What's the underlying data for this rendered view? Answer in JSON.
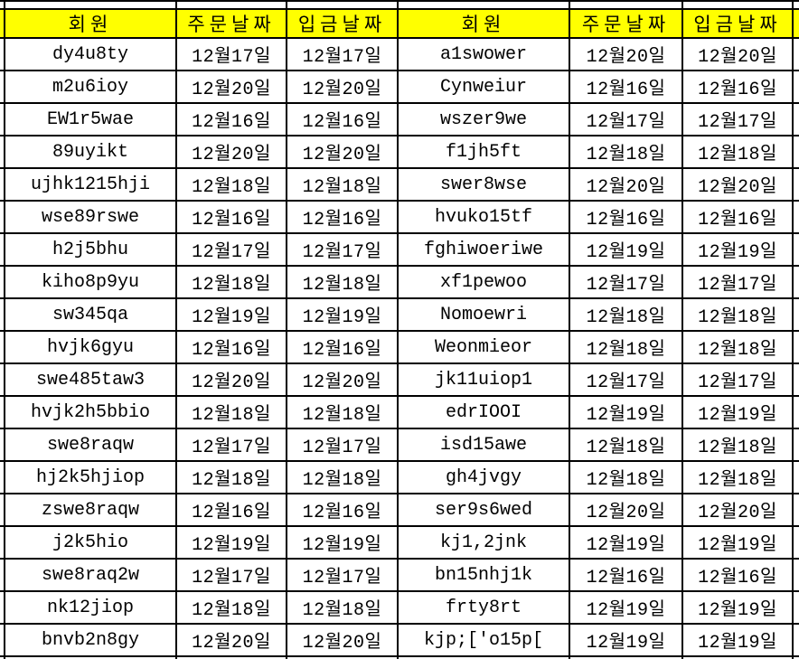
{
  "colors": {
    "header_bg": "#ffff00",
    "border": "#000000",
    "text": "#000000",
    "cell_bg": "#ffffff"
  },
  "table": {
    "headers": [
      "회원",
      "주문날짜",
      "입금날짜",
      "회원",
      "주문날짜",
      "입금날짜"
    ],
    "rows": [
      [
        "dy4u8ty",
        "12월17일",
        "12월17일",
        "a1swower",
        "12월20일",
        "12월20일"
      ],
      [
        "m2u6ioy",
        "12월20일",
        "12월20일",
        "Cynweiur",
        "12월16일",
        "12월16일"
      ],
      [
        "EW1r5wae",
        "12월16일",
        "12월16일",
        "wszer9we",
        "12월17일",
        "12월17일"
      ],
      [
        "89uyikt",
        "12월20일",
        "12월20일",
        "f1jh5ft",
        "12월18일",
        "12월18일"
      ],
      [
        "ujhk1215hji",
        "12월18일",
        "12월18일",
        "swer8wse",
        "12월20일",
        "12월20일"
      ],
      [
        "wse89rswe",
        "12월16일",
        "12월16일",
        "hvuko15tf",
        "12월16일",
        "12월16일"
      ],
      [
        "h2j5bhu",
        "12월17일",
        "12월17일",
        "fghiwoeriwe",
        "12월19일",
        "12월19일"
      ],
      [
        "kiho8p9yu",
        "12월18일",
        "12월18일",
        "xf1pewoo",
        "12월17일",
        "12월17일"
      ],
      [
        "sw345qa",
        "12월19일",
        "12월19일",
        "Nomoewri",
        "12월18일",
        "12월18일"
      ],
      [
        "hvjk6gyu",
        "12월16일",
        "12월16일",
        "Weonmieor",
        "12월18일",
        "12월18일"
      ],
      [
        "swe485taw3",
        "12월20일",
        "12월20일",
        "jk11uiop1",
        "12월17일",
        "12월17일"
      ],
      [
        "hvjk2h5bbio",
        "12월18일",
        "12월18일",
        "edrIOOI",
        "12월19일",
        "12월19일"
      ],
      [
        "swe8raqw",
        "12월17일",
        "12월17일",
        "isd15awe",
        "12월18일",
        "12월18일"
      ],
      [
        "hj2k5hjiop",
        "12월18일",
        "12월18일",
        "gh4jvgy",
        "12월18일",
        "12월18일"
      ],
      [
        "zswe8raqw",
        "12월16일",
        "12월16일",
        "ser9s6wed",
        "12월20일",
        "12월20일"
      ],
      [
        "j2k5hio",
        "12월19일",
        "12월19일",
        "kj1,2jnk",
        "12월19일",
        "12월19일"
      ],
      [
        "swe8raq2w",
        "12월17일",
        "12월17일",
        "bn15nhj1k",
        "12월16일",
        "12월16일"
      ],
      [
        "nk12jiop",
        "12월18일",
        "12월18일",
        "frty8rt",
        "12월19일",
        "12월19일"
      ],
      [
        "bnvb2n8gy",
        "12월20일",
        "12월20일",
        "kjp;['o15p[",
        "12월19일",
        "12월19일"
      ]
    ]
  }
}
